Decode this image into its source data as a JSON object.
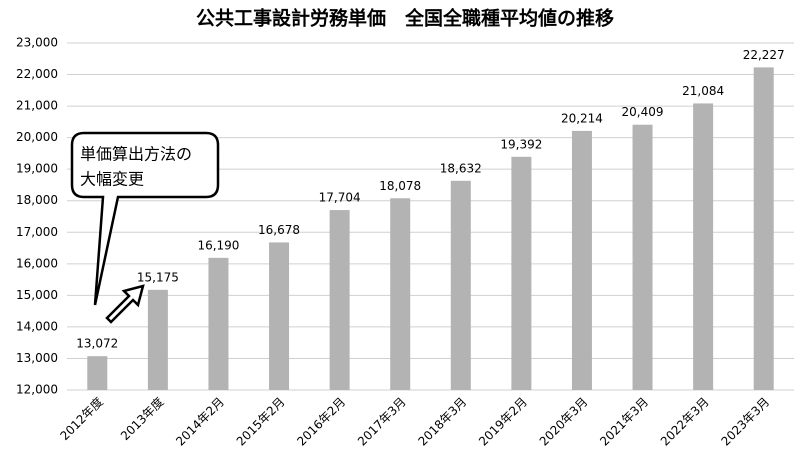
{
  "chart_data": {
    "type": "bar",
    "title": "公共工事設計労務単価　全国全職種平均値の推移",
    "categories": [
      "2012年度",
      "2013年度",
      "2014年2月",
      "2015年2月",
      "2016年2月",
      "2017年3月",
      "2018年3月",
      "2019年2月",
      "2020年3月",
      "2021年3月",
      "2022年3月",
      "2023年3月"
    ],
    "values": [
      13072,
      15175,
      16190,
      16678,
      17704,
      18078,
      18632,
      19392,
      20214,
      20409,
      21084,
      22227
    ],
    "value_labels": [
      "13,072",
      "15,175",
      "16,190",
      "16,678",
      "17,704",
      "18,078",
      "18,632",
      "19,392",
      "20,214",
      "20,409",
      "21,084",
      "22,227"
    ],
    "color": "#b3b3b3",
    "ylim": [
      12000,
      23000
    ],
    "yticks": [
      {
        "value": 12000,
        "label": "12,000"
      },
      {
        "value": 13000,
        "label": "13,000"
      },
      {
        "value": 14000,
        "label": "14,000"
      },
      {
        "value": 15000,
        "label": "15,000"
      },
      {
        "value": 16000,
        "label": "16,000"
      },
      {
        "value": 17000,
        "label": "17,000"
      },
      {
        "value": 18000,
        "label": "18,000"
      },
      {
        "value": 19000,
        "label": "19,000"
      },
      {
        "value": 20000,
        "label": "20,000"
      },
      {
        "value": 21000,
        "label": "21,000"
      },
      {
        "value": 22000,
        "label": "22,000"
      },
      {
        "value": 23000,
        "label": "23,000"
      }
    ],
    "grid": true,
    "annotation": [
      "単価算出方法の",
      "大幅変更"
    ]
  }
}
